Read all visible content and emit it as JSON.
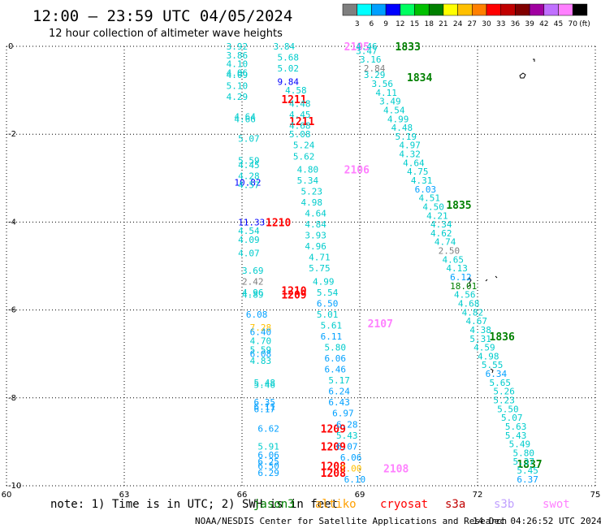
{
  "chart_data": {
    "type": "scatter",
    "title": "12:00 – 23:59 UTC 04/05/2024",
    "subtitle": "12 hour collection of altimeter wave heights",
    "xlim": [
      60,
      75
    ],
    "ylim": [
      -10,
      0
    ],
    "x_ticks": [
      "60",
      "63",
      "66",
      "69",
      "72",
      "75"
    ],
    "y_ticks": [
      "0",
      "-2",
      "-4",
      "-6",
      "-8",
      "-10"
    ],
    "grid": true,
    "colorbar": {
      "unit": "(ft)",
      "labels": [
        "3",
        "6",
        "9",
        "12",
        "15",
        "18",
        "21",
        "24",
        "27",
        "30",
        "33",
        "36",
        "39",
        "42",
        "45",
        "70"
      ],
      "colors": [
        "#7f7f7f",
        "#00ffff",
        "#00a0ff",
        "#0000ff",
        "#00ff60",
        "#00c000",
        "#008000",
        "#ffff00",
        "#ffc000",
        "#ff8000",
        "#ff0000",
        "#c00000",
        "#800000",
        "#a000a0",
        "#c070ff",
        "#ff80ff",
        "#000000"
      ]
    },
    "labels": [
      {
        "t": "1833",
        "x": 69.9,
        "y": 0.0,
        "c": "#008000",
        "big": true
      },
      {
        "t": "1834",
        "x": 70.2,
        "y": -0.7,
        "c": "#008000",
        "big": true
      },
      {
        "t": "1835",
        "x": 71.2,
        "y": -3.6,
        "c": "#008000",
        "big": true
      },
      {
        "t": "1836",
        "x": 72.3,
        "y": -6.6,
        "c": "#008000",
        "big": true
      },
      {
        "t": "1837",
        "x": 73.0,
        "y": -9.5,
        "c": "#008000",
        "big": true
      },
      {
        "t": "2105",
        "x": 68.6,
        "y": 0.0,
        "c": "#ff80ff",
        "big": true
      },
      {
        "t": "2106",
        "x": 68.6,
        "y": -2.8,
        "c": "#ff80ff",
        "big": true
      },
      {
        "t": "2107",
        "x": 69.2,
        "y": -6.3,
        "c": "#ff80ff",
        "big": true
      },
      {
        "t": "2108",
        "x": 69.6,
        "y": -9.6,
        "c": "#ff80ff",
        "big": true
      },
      {
        "t": "1211",
        "x": 67.0,
        "y": -1.2,
        "c": "#ff0000",
        "big": true
      },
      {
        "t": "1211",
        "x": 67.2,
        "y": -1.7,
        "c": "#ff0000",
        "big": true
      },
      {
        "t": "1210",
        "x": 66.6,
        "y": -4.0,
        "c": "#ff0000",
        "big": true
      },
      {
        "t": "1210",
        "x": 67.0,
        "y": -5.55,
        "c": "#ff0000",
        "big": true
      },
      {
        "t": "1209",
        "x": 67.0,
        "y": -5.65,
        "c": "#ff0000",
        "big": true
      },
      {
        "t": "1209",
        "x": 68.0,
        "y": -8.7,
        "c": "#ff0000",
        "big": true
      },
      {
        "t": "1209",
        "x": 68.0,
        "y": -9.1,
        "c": "#ff0000",
        "big": true
      },
      {
        "t": "1208",
        "x": 68.0,
        "y": -9.55,
        "c": "#ff0000",
        "big": true
      },
      {
        "t": "1208",
        "x": 68.0,
        "y": -9.7,
        "c": "#ff0000",
        "big": true
      },
      {
        "t": "3.92",
        "x": 65.6,
        "y": 0.0,
        "c": "#00cccc"
      },
      {
        "t": "3.86",
        "x": 65.6,
        "y": -0.2,
        "c": "#00cccc"
      },
      {
        "t": "4.10",
        "x": 65.6,
        "y": -0.4,
        "c": "#00cccc"
      },
      {
        "t": "4.06",
        "x": 65.6,
        "y": -0.6,
        "c": "#00cccc"
      },
      {
        "t": "4.09",
        "x": 65.6,
        "y": -0.65,
        "c": "#00cccc"
      },
      {
        "t": "5.10",
        "x": 65.6,
        "y": -0.9,
        "c": "#00cccc"
      },
      {
        "t": "4.29",
        "x": 65.6,
        "y": -1.15,
        "c": "#00cccc"
      },
      {
        "t": "4.64",
        "x": 65.8,
        "y": -1.6,
        "c": "#00cccc"
      },
      {
        "t": "4.66",
        "x": 65.8,
        "y": -1.65,
        "c": "#00cccc"
      },
      {
        "t": "5.07",
        "x": 65.9,
        "y": -2.1,
        "c": "#00cccc"
      },
      {
        "t": "5.59",
        "x": 65.9,
        "y": -2.6,
        "c": "#00cccc"
      },
      {
        "t": "4.45",
        "x": 65.9,
        "y": -2.7,
        "c": "#00cccc"
      },
      {
        "t": "4.28",
        "x": 65.9,
        "y": -2.95,
        "c": "#00cccc"
      },
      {
        "t": "10.82",
        "x": 65.8,
        "y": -3.1,
        "c": "#0000ff"
      },
      {
        "t": "4.57",
        "x": 65.9,
        "y": -3.15,
        "c": "#00cccc"
      },
      {
        "t": "11.33",
        "x": 65.9,
        "y": -4.0,
        "c": "#0000ff"
      },
      {
        "t": "4.54",
        "x": 65.9,
        "y": -4.2,
        "c": "#00cccc"
      },
      {
        "t": "4.09",
        "x": 65.9,
        "y": -4.4,
        "c": "#00cccc"
      },
      {
        "t": "4.07",
        "x": 65.9,
        "y": -4.7,
        "c": "#00cccc"
      },
      {
        "t": "3.69",
        "x": 66.0,
        "y": -5.1,
        "c": "#00cccc"
      },
      {
        "t": "2.42",
        "x": 66.0,
        "y": -5.35,
        "c": "#7f7f7f"
      },
      {
        "t": "4.96",
        "x": 66.0,
        "y": -5.6,
        "c": "#00cccc"
      },
      {
        "t": "4.89",
        "x": 66.0,
        "y": -5.65,
        "c": "#00cccc"
      },
      {
        "t": "6.08",
        "x": 66.1,
        "y": -6.1,
        "c": "#00a0ff"
      },
      {
        "t": "7.28",
        "x": 66.2,
        "y": -6.4,
        "c": "#ffc000"
      },
      {
        "t": "6.40",
        "x": 66.2,
        "y": -6.5,
        "c": "#00a0ff"
      },
      {
        "t": "4.70",
        "x": 66.2,
        "y": -6.7,
        "c": "#00cccc"
      },
      {
        "t": "5.59",
        "x": 66.2,
        "y": -6.9,
        "c": "#00cccc"
      },
      {
        "t": "6.08",
        "x": 66.2,
        "y": -7.0,
        "c": "#00a0ff"
      },
      {
        "t": "4.83",
        "x": 66.2,
        "y": -7.15,
        "c": "#00cccc"
      },
      {
        "t": "5.48",
        "x": 66.3,
        "y": -7.65,
        "c": "#00cccc"
      },
      {
        "t": "5.46",
        "x": 66.3,
        "y": -7.7,
        "c": "#00cccc"
      },
      {
        "t": "6.35",
        "x": 66.3,
        "y": -8.1,
        "c": "#00a0ff"
      },
      {
        "t": "6.11",
        "x": 66.3,
        "y": -8.2,
        "c": "#00a0ff"
      },
      {
        "t": "6.17",
        "x": 66.3,
        "y": -8.25,
        "c": "#00a0ff"
      },
      {
        "t": "6.62",
        "x": 66.4,
        "y": -8.7,
        "c": "#00a0ff"
      },
      {
        "t": "5.91",
        "x": 66.4,
        "y": -9.1,
        "c": "#00cccc"
      },
      {
        "t": "6.06",
        "x": 66.4,
        "y": -9.3,
        "c": "#00a0ff"
      },
      {
        "t": "6.25",
        "x": 66.4,
        "y": -9.45,
        "c": "#00a0ff"
      },
      {
        "t": "6.50",
        "x": 66.4,
        "y": -9.55,
        "c": "#00a0ff"
      },
      {
        "t": "6.29",
        "x": 66.4,
        "y": -9.7,
        "c": "#00a0ff"
      },
      {
        "t": "3.84",
        "x": 66.8,
        "y": 0.0,
        "c": "#00cccc"
      },
      {
        "t": "5.68",
        "x": 66.9,
        "y": -0.25,
        "c": "#00cccc"
      },
      {
        "t": "5.02",
        "x": 66.9,
        "y": -0.5,
        "c": "#00cccc"
      },
      {
        "t": "9.84",
        "x": 66.9,
        "y": -0.8,
        "c": "#0000ff"
      },
      {
        "t": "4.58",
        "x": 67.1,
        "y": -1.0,
        "c": "#00cccc"
      },
      {
        "t": "4.48",
        "x": 67.2,
        "y": -1.3,
        "c": "#00cccc"
      },
      {
        "t": "4.45",
        "x": 67.2,
        "y": -1.55,
        "c": "#00cccc"
      },
      {
        "t": "4.68",
        "x": 67.2,
        "y": -1.8,
        "c": "#00cccc"
      },
      {
        "t": "5.08",
        "x": 67.2,
        "y": -2.0,
        "c": "#00cccc"
      },
      {
        "t": "5.24",
        "x": 67.3,
        "y": -2.25,
        "c": "#00cccc"
      },
      {
        "t": "5.62",
        "x": 67.3,
        "y": -2.5,
        "c": "#00cccc"
      },
      {
        "t": "4.80",
        "x": 67.4,
        "y": -2.8,
        "c": "#00cccc"
      },
      {
        "t": "5.34",
        "x": 67.4,
        "y": -3.05,
        "c": "#00cccc"
      },
      {
        "t": "5.23",
        "x": 67.5,
        "y": -3.3,
        "c": "#00cccc"
      },
      {
        "t": "4.98",
        "x": 67.5,
        "y": -3.55,
        "c": "#00cccc"
      },
      {
        "t": "4.64",
        "x": 67.6,
        "y": -3.8,
        "c": "#00cccc"
      },
      {
        "t": "4.84",
        "x": 67.6,
        "y": -4.05,
        "c": "#00cccc"
      },
      {
        "t": "3.93",
        "x": 67.6,
        "y": -4.3,
        "c": "#00cccc"
      },
      {
        "t": "4.96",
        "x": 67.6,
        "y": -4.55,
        "c": "#00cccc"
      },
      {
        "t": "4.71",
        "x": 67.7,
        "y": -4.8,
        "c": "#00cccc"
      },
      {
        "t": "5.75",
        "x": 67.7,
        "y": -5.05,
        "c": "#00cccc"
      },
      {
        "t": "4.99",
        "x": 67.8,
        "y": -5.35,
        "c": "#00cccc"
      },
      {
        "t": "5.54",
        "x": 67.9,
        "y": -5.6,
        "c": "#00cccc"
      },
      {
        "t": "6.50",
        "x": 67.9,
        "y": -5.85,
        "c": "#00a0ff"
      },
      {
        "t": "5.01",
        "x": 67.9,
        "y": -6.1,
        "c": "#00cccc"
      },
      {
        "t": "5.61",
        "x": 68.0,
        "y": -6.35,
        "c": "#00cccc"
      },
      {
        "t": "6.11",
        "x": 68.0,
        "y": -6.6,
        "c": "#00a0ff"
      },
      {
        "t": "5.80",
        "x": 68.1,
        "y": -6.85,
        "c": "#00cccc"
      },
      {
        "t": "6.06",
        "x": 68.1,
        "y": -7.1,
        "c": "#00a0ff"
      },
      {
        "t": "6.46",
        "x": 68.1,
        "y": -7.35,
        "c": "#00a0ff"
      },
      {
        "t": "5.17",
        "x": 68.2,
        "y": -7.6,
        "c": "#00cccc"
      },
      {
        "t": "6.24",
        "x": 68.2,
        "y": -7.85,
        "c": "#00a0ff"
      },
      {
        "t": "6.43",
        "x": 68.2,
        "y": -8.1,
        "c": "#00a0ff"
      },
      {
        "t": "6.97",
        "x": 68.3,
        "y": -8.35,
        "c": "#00a0ff"
      },
      {
        "t": "6.28",
        "x": 68.4,
        "y": -8.6,
        "c": "#00a0ff"
      },
      {
        "t": "5.43",
        "x": 68.4,
        "y": -8.85,
        "c": "#00cccc"
      },
      {
        "t": "6.07",
        "x": 68.4,
        "y": -9.1,
        "c": "#00a0ff"
      },
      {
        "t": "6.06",
        "x": 68.5,
        "y": -9.35,
        "c": "#00a0ff"
      },
      {
        "t": "7.00",
        "x": 68.5,
        "y": -9.6,
        "c": "#ffc000"
      },
      {
        "t": "6.10",
        "x": 68.6,
        "y": -9.85,
        "c": "#00a0ff"
      },
      {
        "t": "4.46",
        "x": 68.9,
        "y": 0.0,
        "c": "#00cccc"
      },
      {
        "t": "3.47",
        "x": 68.9,
        "y": -0.1,
        "c": "#00cccc"
      },
      {
        "t": "3.16",
        "x": 69.0,
        "y": -0.3,
        "c": "#00cccc"
      },
      {
        "t": "2.84",
        "x": 69.1,
        "y": -0.5,
        "c": "#7f7f7f"
      },
      {
        "t": "3.29",
        "x": 69.1,
        "y": -0.65,
        "c": "#00cccc"
      },
      {
        "t": "3.56",
        "x": 69.3,
        "y": -0.85,
        "c": "#00cccc"
      },
      {
        "t": "4.11",
        "x": 69.4,
        "y": -1.05,
        "c": "#00cccc"
      },
      {
        "t": "3.49",
        "x": 69.5,
        "y": -1.25,
        "c": "#00cccc"
      },
      {
        "t": "4.54",
        "x": 69.6,
        "y": -1.45,
        "c": "#00cccc"
      },
      {
        "t": "4.99",
        "x": 69.7,
        "y": -1.65,
        "c": "#00cccc"
      },
      {
        "t": "4.48",
        "x": 69.8,
        "y": -1.85,
        "c": "#00cccc"
      },
      {
        "t": "5.19",
        "x": 69.9,
        "y": -2.05,
        "c": "#00cccc"
      },
      {
        "t": "4.97",
        "x": 70.0,
        "y": -2.25,
        "c": "#00cccc"
      },
      {
        "t": "4.32",
        "x": 70.0,
        "y": -2.45,
        "c": "#00cccc"
      },
      {
        "t": "4.64",
        "x": 70.1,
        "y": -2.65,
        "c": "#00cccc"
      },
      {
        "t": "4.75",
        "x": 70.2,
        "y": -2.85,
        "c": "#00cccc"
      },
      {
        "t": "4.31",
        "x": 70.3,
        "y": -3.05,
        "c": "#00cccc"
      },
      {
        "t": "6.03",
        "x": 70.4,
        "y": -3.25,
        "c": "#00a0ff"
      },
      {
        "t": "4.51",
        "x": 70.5,
        "y": -3.45,
        "c": "#00cccc"
      },
      {
        "t": "4.50",
        "x": 70.6,
        "y": -3.65,
        "c": "#00cccc"
      },
      {
        "t": "4.21",
        "x": 70.7,
        "y": -3.85,
        "c": "#00cccc"
      },
      {
        "t": "4.34",
        "x": 70.8,
        "y": -4.05,
        "c": "#00cccc"
      },
      {
        "t": "4.62",
        "x": 70.8,
        "y": -4.25,
        "c": "#00cccc"
      },
      {
        "t": "4.74",
        "x": 70.9,
        "y": -4.45,
        "c": "#00cccc"
      },
      {
        "t": "2.50",
        "x": 71.0,
        "y": -4.65,
        "c": "#7f7f7f"
      },
      {
        "t": "4.65",
        "x": 71.1,
        "y": -4.85,
        "c": "#00cccc"
      },
      {
        "t": "4.13",
        "x": 71.2,
        "y": -5.05,
        "c": "#00cccc"
      },
      {
        "t": "6.12",
        "x": 71.3,
        "y": -5.25,
        "c": "#00a0ff"
      },
      {
        "t": "18.01",
        "x": 71.3,
        "y": -5.45,
        "c": "#008000"
      },
      {
        "t": "4.56",
        "x": 71.4,
        "y": -5.65,
        "c": "#00cccc"
      },
      {
        "t": "4.68",
        "x": 71.5,
        "y": -5.85,
        "c": "#00cccc"
      },
      {
        "t": "4.82",
        "x": 71.6,
        "y": -6.05,
        "c": "#00cccc"
      },
      {
        "t": "4.67",
        "x": 71.7,
        "y": -6.25,
        "c": "#00cccc"
      },
      {
        "t": "4.38",
        "x": 71.8,
        "y": -6.45,
        "c": "#00cccc"
      },
      {
        "t": "5.31",
        "x": 71.8,
        "y": -6.65,
        "c": "#00cccc"
      },
      {
        "t": "4.59",
        "x": 71.9,
        "y": -6.85,
        "c": "#00cccc"
      },
      {
        "t": "4.98",
        "x": 72.0,
        "y": -7.05,
        "c": "#00cccc"
      },
      {
        "t": "5.55",
        "x": 72.1,
        "y": -7.25,
        "c": "#00cccc"
      },
      {
        "t": "6.34",
        "x": 72.2,
        "y": -7.45,
        "c": "#00a0ff"
      },
      {
        "t": "5.65",
        "x": 72.3,
        "y": -7.65,
        "c": "#00cccc"
      },
      {
        "t": "5.26",
        "x": 72.4,
        "y": -7.85,
        "c": "#00cccc"
      },
      {
        "t": "5.23",
        "x": 72.4,
        "y": -8.05,
        "c": "#00cccc"
      },
      {
        "t": "5.50",
        "x": 72.5,
        "y": -8.25,
        "c": "#00cccc"
      },
      {
        "t": "5.07",
        "x": 72.6,
        "y": -8.45,
        "c": "#00cccc"
      },
      {
        "t": "5.63",
        "x": 72.7,
        "y": -8.65,
        "c": "#00cccc"
      },
      {
        "t": "5.43",
        "x": 72.7,
        "y": -8.85,
        "c": "#00cccc"
      },
      {
        "t": "5.49",
        "x": 72.8,
        "y": -9.05,
        "c": "#00cccc"
      },
      {
        "t": "5.80",
        "x": 72.9,
        "y": -9.25,
        "c": "#00cccc"
      },
      {
        "t": "5.37",
        "x": 72.9,
        "y": -9.45,
        "c": "#00cccc"
      },
      {
        "t": "5.45",
        "x": 73.0,
        "y": -9.65,
        "c": "#00cccc"
      },
      {
        "t": "6.37",
        "x": 73.0,
        "y": -9.85,
        "c": "#00a0ff"
      }
    ]
  },
  "note": "note:  1) Time is in UTC; 2) SWH is in feet",
  "legend": [
    {
      "t": "jason3",
      "c": "#008000"
    },
    {
      "t": "altiko",
      "c": "#ffa000"
    },
    {
      "t": "cryosat",
      "c": "#ff0000"
    },
    {
      "t": "s3a",
      "c": "#c00000"
    },
    {
      "t": "s3b",
      "c": "#c0a0ff"
    },
    {
      "t": "swot",
      "c": "#ff80ff"
    }
  ],
  "credit": "NOAA/NESDIS Center for Satellite Applications and Research",
  "timestamp": "14 Dec 04:26:52 UTC 2024"
}
